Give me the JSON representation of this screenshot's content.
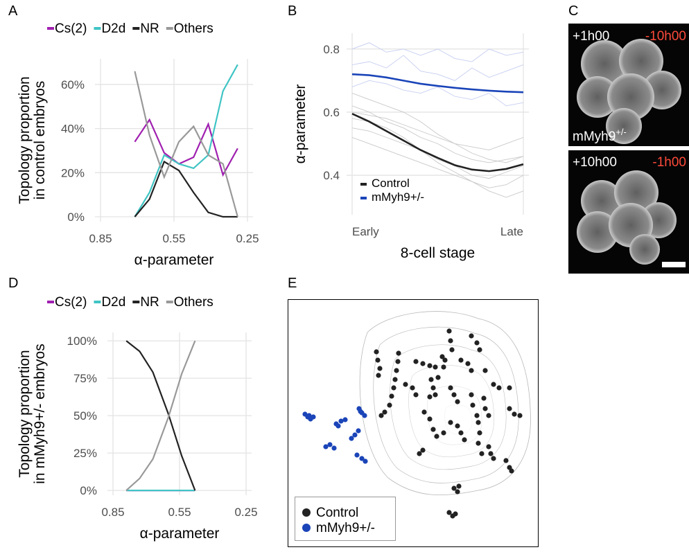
{
  "chart_data": [
    {
      "panel": "A",
      "type": "line",
      "legend": "top",
      "x": [
        0.71,
        0.65,
        0.59,
        0.53,
        0.47,
        0.41,
        0.35,
        0.29
      ],
      "xlim": [
        0.85,
        0.25
      ],
      "xticks": [
        0.85,
        0.55,
        0.25
      ],
      "ylim": [
        -2.2,
        71.6
      ],
      "yticks": [
        {
          "value": 0,
          "label": "0%"
        },
        {
          "value": 20,
          "label": "20%"
        },
        {
          "value": 40,
          "label": "40%"
        },
        {
          "value": 60,
          "label": "60%"
        }
      ],
      "xlabel": "α-parameter",
      "ylabel": [
        "Topology proportion",
        "in control embryos"
      ],
      "grid": true,
      "series": [
        {
          "name": "Cs(2)",
          "color": "#a020b0",
          "values": [
            34,
            44,
            29,
            24,
            27,
            42,
            19,
            31
          ]
        },
        {
          "name": "D2d",
          "color": "#40c4c4",
          "values": [
            0,
            11,
            28,
            24,
            22,
            28,
            57,
            69
          ]
        },
        {
          "name": "NR",
          "color": "#222222",
          "values": [
            0,
            8,
            25,
            21,
            11,
            2,
            0,
            0
          ]
        },
        {
          "name": "Others",
          "color": "#999999",
          "values": [
            66,
            37,
            18,
            34,
            41,
            28,
            24,
            0
          ]
        }
      ]
    },
    {
      "panel": "B",
      "type": "line",
      "legend": "bottom-left",
      "x": [
        0,
        1,
        2,
        3,
        4,
        5,
        6,
        7,
        8,
        9,
        10
      ],
      "xlim": [
        0,
        10
      ],
      "xticks": [
        {
          "value": 0,
          "label": "Early"
        },
        {
          "value": 10,
          "label": "Late"
        }
      ],
      "ylim": [
        0.275,
        0.85
      ],
      "yticks": [
        0.4,
        0.6,
        0.8
      ],
      "xlabel": "8-cell stage",
      "ylabel": [
        "α-parameter"
      ],
      "grid": true,
      "traces": [
        {
          "color": "#c8c8c8",
          "values": [
            0.62,
            0.6,
            0.57,
            0.55,
            0.52,
            0.5,
            0.47,
            0.45,
            0.44,
            0.45,
            0.46
          ]
        },
        {
          "color": "#c8c8c8",
          "values": [
            0.55,
            0.54,
            0.52,
            0.5,
            0.48,
            0.45,
            0.43,
            0.4,
            0.39,
            0.41,
            0.43
          ]
        },
        {
          "color": "#c8c8c8",
          "values": [
            0.58,
            0.57,
            0.55,
            0.52,
            0.48,
            0.44,
            0.41,
            0.38,
            0.36,
            0.37,
            0.4
          ]
        },
        {
          "color": "#c8c8c8",
          "values": [
            0.66,
            0.64,
            0.62,
            0.6,
            0.57,
            0.53,
            0.5,
            0.47,
            0.45,
            0.44,
            0.46
          ]
        },
        {
          "color": "#c8c8c8",
          "values": [
            0.52,
            0.5,
            0.48,
            0.46,
            0.44,
            0.42,
            0.4,
            0.38,
            0.35,
            0.33,
            0.35
          ]
        },
        {
          "color": "#c8c8c8",
          "values": [
            0.6,
            0.59,
            0.58,
            0.56,
            0.54,
            0.52,
            0.5,
            0.49,
            0.48,
            0.5,
            0.52
          ]
        },
        {
          "color": "#c5cdf0",
          "values": [
            0.75,
            0.76,
            0.74,
            0.78,
            0.73,
            0.72,
            0.7,
            0.74,
            0.71,
            0.73,
            0.75
          ]
        },
        {
          "color": "#c5cdf0",
          "values": [
            0.68,
            0.7,
            0.69,
            0.67,
            0.66,
            0.68,
            0.65,
            0.64,
            0.66,
            0.62,
            0.63
          ]
        },
        {
          "color": "#c5cdf0",
          "values": [
            0.8,
            0.82,
            0.79,
            0.8,
            0.78,
            0.8,
            0.77,
            0.76,
            0.8,
            0.78,
            0.79
          ]
        }
      ],
      "series": [
        {
          "name": "Control",
          "color": "#222222",
          "values": [
            0.595,
            0.57,
            0.54,
            0.51,
            0.48,
            0.455,
            0.432,
            0.418,
            0.413,
            0.42,
            0.435
          ]
        },
        {
          "name": "mMyh9+/-",
          "color": "#1a44b8",
          "values": [
            0.72,
            0.717,
            0.71,
            0.7,
            0.69,
            0.683,
            0.677,
            0.672,
            0.668,
            0.665,
            0.663
          ]
        }
      ]
    },
    {
      "panel": "D",
      "type": "line",
      "legend": "top",
      "x": [
        0.79,
        0.73,
        0.67,
        0.6,
        0.54,
        0.48
      ],
      "xlim": [
        0.85,
        0.25
      ],
      "xticks": [
        0.85,
        0.55,
        0.25
      ],
      "ylim": [
        -3.2,
        105.6
      ],
      "yticks": [
        {
          "value": 0,
          "label": "0%"
        },
        {
          "value": 25,
          "label": "25%"
        },
        {
          "value": 50,
          "label": "50%"
        },
        {
          "value": 75,
          "label": "75%"
        },
        {
          "value": 100,
          "label": "100%"
        }
      ],
      "xlabel": "α-parameter",
      "ylabel": [
        "Topology proportion",
        "in mMyh9+/- embryos"
      ],
      "grid": true,
      "series": [
        {
          "name": "Cs(2)",
          "color": "#a020b0",
          "values": [
            0,
            0,
            0,
            0,
            0,
            0
          ]
        },
        {
          "name": "D2d",
          "color": "#40c4c4",
          "values": [
            0,
            0,
            0,
            0,
            0,
            0
          ]
        },
        {
          "name": "NR",
          "color": "#222222",
          "values": [
            100,
            93,
            79,
            51,
            23,
            0
          ]
        },
        {
          "name": "Others",
          "color": "#999999",
          "values": [
            0,
            8,
            21,
            49,
            78,
            100
          ]
        }
      ]
    },
    {
      "panel": "E",
      "type": "scatter",
      "legend": "bottom-left",
      "series": [
        {
          "name": "Control",
          "color": "#222222",
          "x": [
            128,
            130,
            133,
            131,
            160,
            159,
            157,
            155,
            153,
            150,
            147,
            140,
            135,
            185,
            195,
            205,
            213,
            170,
            180,
            185,
            207,
            210,
            213,
            205,
            233,
            235,
            237,
            265,
            273,
            277,
            223,
            227,
            225,
            217,
            250,
            260,
            265,
            235,
            240,
            245,
            285,
            297,
            305,
            320,
            283,
            285,
            290,
            265,
            267,
            273,
            320,
            327,
            335,
            197,
            205,
            210,
            215,
            225,
            235,
            245,
            250,
            255,
            275,
            277,
            275,
            280,
            190,
            195,
            290,
            293,
            297,
            315,
            320,
            323,
            240,
            245,
            247,
            233,
            238,
            242
          ],
          "y": [
            282,
            270,
            258,
            248,
            280,
            268,
            255,
            242,
            230,
            218,
            205,
            195,
            190,
            268,
            265,
            262,
            260,
            235,
            230,
            220,
            242,
            230,
            220,
            217,
            312,
            298,
            285,
            305,
            295,
            285,
            275,
            270,
            260,
            245,
            270,
            265,
            255,
            230,
            220,
            210,
            255,
            235,
            230,
            230,
            215,
            200,
            190,
            220,
            205,
            190,
            200,
            192,
            190,
            195,
            185,
            170,
            160,
            165,
            180,
            175,
            165,
            155,
            180,
            165,
            150,
            135,
            135,
            140,
            145,
            135,
            128,
            125,
            115,
            110,
            85,
            80,
            88,
            50,
            45,
            48
          ]
        },
        {
          "name": "mMyh9+/-",
          "color": "#1a44b8",
          "x": [
            25,
            31,
            37,
            33,
            29,
            55,
            61,
            67,
            70,
            77,
            83,
            73,
            103,
            107,
            111,
            105,
            92,
            97,
            102,
            100,
            107,
            112
          ],
          "y": [
            192,
            190,
            188,
            185,
            188,
            145,
            148,
            143,
            178,
            182,
            184,
            175,
            200,
            194,
            190,
            196,
            157,
            162,
            168,
            133,
            128,
            124
          ]
        }
      ]
    }
  ],
  "images": {
    "panel": "C",
    "frames": [
      {
        "left": "+1h00",
        "right": "-10h00",
        "caption": "mMyh9",
        "caption_sup": "+/-"
      },
      {
        "left": "+10h00",
        "right": "-1h00"
      }
    ]
  }
}
